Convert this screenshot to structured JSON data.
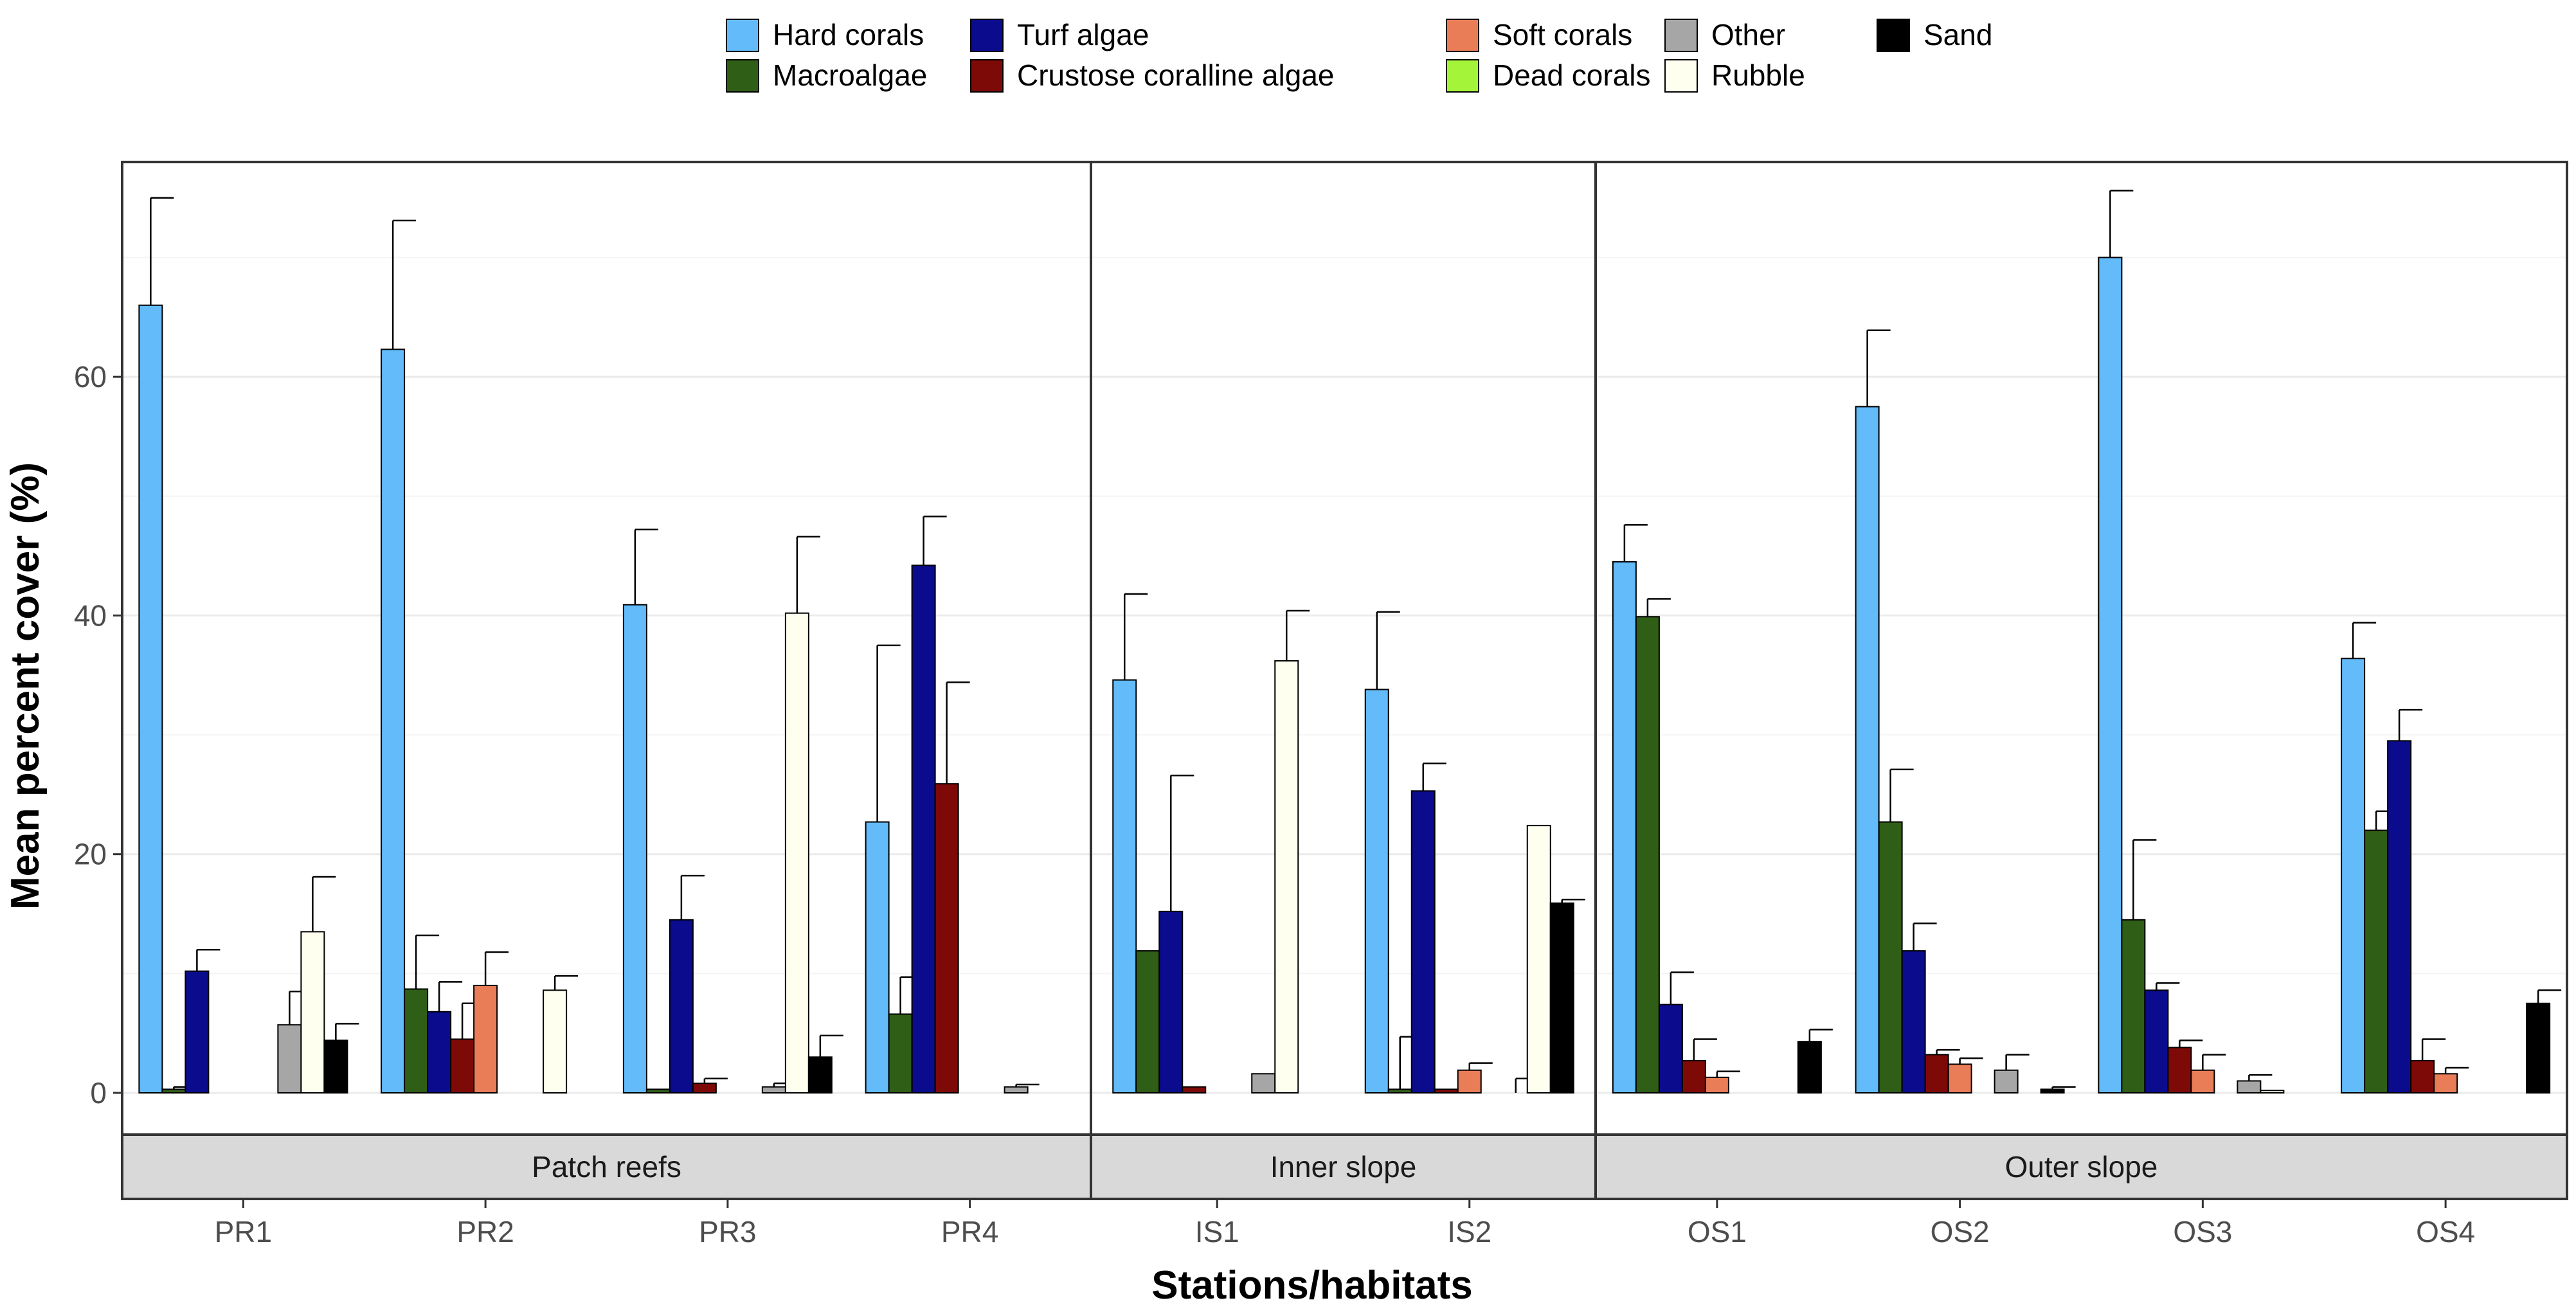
{
  "chart_data": {
    "type": "bar",
    "xlabel": "Stations/habitats",
    "ylabel": "Mean percent cover (%)",
    "ylim": [
      0,
      78
    ],
    "yticks": [
      0,
      20,
      40,
      60
    ],
    "grid": true,
    "legend_position": "top",
    "categories": [
      "Hard corals",
      "Macroalgae",
      "Turf algae",
      "Crustose coralline algae",
      "Soft corals",
      "Dead corals",
      "Other",
      "Rubble",
      "Sand"
    ],
    "colors": [
      "#63BBF9",
      "#2F5E16",
      "#0B0B8E",
      "#7E0A08",
      "#E87D58",
      "#A4F53A",
      "#A6A6A6",
      "#FFFFF0",
      "#000000"
    ],
    "legend": {
      "rows": [
        [
          "Hard corals",
          "Turf algae",
          "Soft corals",
          "Other",
          "Sand"
        ],
        [
          "Macroalgae",
          "Crustose coralline algae",
          "Dead corals",
          "Rubble"
        ]
      ]
    },
    "panels": [
      {
        "name": "Patch reefs",
        "stations": [
          {
            "name": "PR1",
            "values": [
              66.0,
              0.3,
              10.2,
              0.0,
              0.0,
              0.0,
              5.7,
              13.5,
              4.4
            ],
            "err": [
              9.0,
              0.2,
              1.8,
              0,
              0,
              0,
              2.8,
              4.6,
              1.4
            ]
          },
          {
            "name": "PR2",
            "values": [
              62.3,
              8.7,
              6.8,
              4.5,
              9.0,
              0.0,
              0.0,
              8.6,
              0.0
            ],
            "err": [
              10.8,
              4.5,
              2.5,
              3.0,
              2.8,
              0,
              0,
              1.2,
              0
            ]
          },
          {
            "name": "PR3",
            "values": [
              40.9,
              0.3,
              14.5,
              0.8,
              0.0,
              0.0,
              0.5,
              40.2,
              3.0
            ],
            "err": [
              6.3,
              0,
              3.7,
              0.4,
              0,
              0,
              0.3,
              6.4,
              1.8
            ]
          },
          {
            "name": "PR4",
            "values": [
              22.7,
              6.6,
              44.2,
              25.9,
              0.0,
              0.0,
              0.5,
              0.0,
              0.0
            ],
            "err": [
              14.8,
              3.1,
              4.1,
              8.5,
              0,
              0,
              0.2,
              0,
              0
            ]
          }
        ]
      },
      {
        "name": "Inner slope",
        "stations": [
          {
            "name": "IS1",
            "values": [
              34.6,
              11.9,
              15.2,
              0.5,
              0.0,
              0.0,
              1.6,
              36.2,
              0.0
            ],
            "err": [
              7.2,
              0,
              11.4,
              0,
              0,
              0,
              0,
              4.2,
              0
            ]
          },
          {
            "name": "IS2",
            "values": [
              33.8,
              0.3,
              25.3,
              0.3,
              1.9,
              0.0,
              0.0,
              22.4,
              15.9
            ],
            "err": [
              6.5,
              4.4,
              2.3,
              0,
              0.6,
              0,
              1.2,
              0,
              0.3
            ]
          }
        ]
      },
      {
        "name": "Outer slope",
        "stations": [
          {
            "name": "OS1",
            "values": [
              44.5,
              39.9,
              7.4,
              2.7,
              1.3,
              0.0,
              0.0,
              0.0,
              4.3
            ],
            "err": [
              3.1,
              1.5,
              2.7,
              1.8,
              0.5,
              0,
              0,
              0,
              1.0
            ]
          },
          {
            "name": "OS2",
            "values": [
              57.5,
              22.7,
              11.9,
              3.2,
              2.4,
              0.0,
              1.9,
              0.0,
              0.3
            ],
            "err": [
              6.4,
              4.4,
              2.3,
              0.4,
              0.5,
              0,
              1.3,
              0,
              0.2
            ]
          },
          {
            "name": "OS3",
            "values": [
              70.0,
              14.5,
              8.6,
              3.8,
              1.9,
              0.0,
              1.0,
              0.2,
              0.0
            ],
            "err": [
              5.6,
              6.7,
              0.6,
              0.6,
              1.3,
              0,
              0.5,
              0,
              0
            ]
          },
          {
            "name": "OS4",
            "values": [
              36.4,
              22.0,
              29.5,
              2.7,
              1.6,
              0.0,
              0.0,
              0.0,
              7.5
            ],
            "err": [
              3.0,
              1.6,
              2.6,
              1.8,
              0.5,
              0,
              0,
              0,
              1.1
            ]
          }
        ]
      }
    ]
  }
}
